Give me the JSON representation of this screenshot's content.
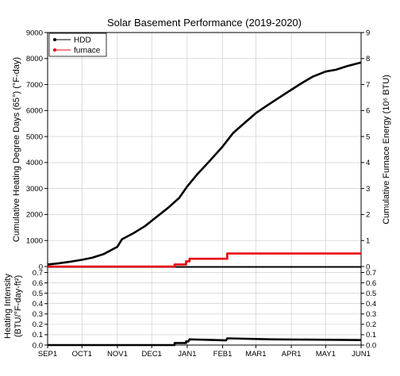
{
  "chart_data": [
    {
      "type": "line",
      "title": "Solar Basement Performance (2019-2020)",
      "ylabel": "Cumulative Heating Degree Days (65°) (°F-day)",
      "y2label": "Cumulative Furnace Energy (10⁶ BTU)",
      "ylim": [
        0,
        9000
      ],
      "y2lim": [
        0,
        9
      ],
      "yticks": [
        "0",
        "1000",
        "2000",
        "3000",
        "4000",
        "5000",
        "6000",
        "7000",
        "8000",
        "9000"
      ],
      "y2ticks": [
        "0",
        "1",
        "2",
        "3",
        "4",
        "5",
        "6",
        "7",
        "8",
        "9"
      ],
      "xlim": [
        "2019-09-01",
        "2020-06-01"
      ],
      "grid": true,
      "legend_position": "top-left",
      "series": [
        {
          "name": "HDD",
          "color": "#000000",
          "axis": "left",
          "points": [
            [
              "2019-09-01",
              80
            ],
            [
              "2019-09-10",
              120
            ],
            [
              "2019-09-20",
              180
            ],
            [
              "2019-10-01",
              260
            ],
            [
              "2019-10-10",
              340
            ],
            [
              "2019-10-20",
              480
            ],
            [
              "2019-11-01",
              760
            ],
            [
              "2019-11-05",
              1050
            ],
            [
              "2019-11-15",
              1280
            ],
            [
              "2019-11-25",
              1550
            ],
            [
              "2019-12-05",
              1900
            ],
            [
              "2019-12-15",
              2250
            ],
            [
              "2019-12-25",
              2640
            ],
            [
              "2020-01-01",
              3080
            ],
            [
              "2020-01-10",
              3560
            ],
            [
              "2020-01-20",
              4030
            ],
            [
              "2020-02-01",
              4620
            ],
            [
              "2020-02-10",
              5130
            ],
            [
              "2020-02-20",
              5520
            ],
            [
              "2020-03-01",
              5900
            ],
            [
              "2020-03-10",
              6170
            ],
            [
              "2020-03-20",
              6460
            ],
            [
              "2020-04-01",
              6800
            ],
            [
              "2020-04-10",
              7050
            ],
            [
              "2020-04-20",
              7310
            ],
            [
              "2020-05-01",
              7500
            ],
            [
              "2020-05-10",
              7570
            ],
            [
              "2020-05-20",
              7710
            ],
            [
              "2020-06-01",
              7850
            ]
          ]
        },
        {
          "name": "furnace",
          "color": "#e8000b",
          "axis": "right",
          "step": true,
          "points": [
            [
              "2019-09-01",
              0.0
            ],
            [
              "2019-12-21",
              0.0
            ],
            [
              "2019-12-21",
              0.08
            ],
            [
              "2019-12-31",
              0.08
            ],
            [
              "2019-12-31",
              0.2
            ],
            [
              "2020-01-03",
              0.2
            ],
            [
              "2020-01-03",
              0.3
            ],
            [
              "2020-02-05",
              0.3
            ],
            [
              "2020-02-05",
              0.5
            ],
            [
              "2020-06-01",
              0.5
            ]
          ]
        }
      ]
    },
    {
      "type": "line",
      "ylabel": "Heating Intensity (BTU/°F-day-ft²)",
      "ylim": [
        0,
        0.75
      ],
      "yticks": [
        "0.0",
        "0.1",
        "0.2",
        "0.3",
        "0.4",
        "0.5",
        "0.6",
        "0.7"
      ],
      "y2ticks": [
        "0.0",
        "0.1",
        "0.2",
        "0.3",
        "0.4",
        "0.5",
        "0.6",
        "0.7"
      ],
      "xticks": [
        "SEP1",
        "OCT1",
        "NOV1",
        "DEC1",
        "JAN1",
        "FEB1",
        "MAR1",
        "APR1",
        "MAY1",
        "JUN1"
      ],
      "xlim": [
        "2019-09-01",
        "2020-06-01"
      ],
      "grid": true,
      "series": [
        {
          "color": "#000000",
          "points": [
            [
              "2019-09-01",
              0.0
            ],
            [
              "2019-12-21",
              0.0
            ],
            [
              "2019-12-21",
              0.02
            ],
            [
              "2019-12-31",
              0.02
            ],
            [
              "2019-12-31",
              0.035
            ],
            [
              "2020-01-02",
              0.035
            ],
            [
              "2020-01-03",
              0.055
            ],
            [
              "2020-02-04",
              0.045
            ],
            [
              "2020-02-05",
              0.065
            ],
            [
              "2020-03-15",
              0.055
            ],
            [
              "2020-06-01",
              0.048
            ]
          ]
        }
      ]
    }
  ]
}
